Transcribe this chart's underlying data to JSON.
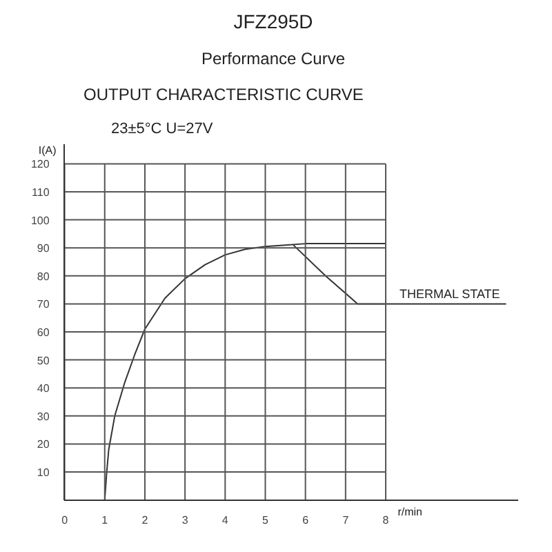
{
  "chart_data": {
    "type": "line",
    "title": "OUTPUT CHARACTERISTIC CURVE",
    "subtitle": "23±5°C U=27V",
    "xlabel": "r/min",
    "ylabel": "I(A)",
    "annotations": [
      "JFZ295D",
      "Performance Curve",
      {
        "text": "THERMAL STATE",
        "x": 9.6,
        "y": 70
      }
    ],
    "series": [
      {
        "color": "#333333",
        "x": [
          1,
          1.05,
          1.1,
          1.25,
          1.5,
          1.75,
          2,
          2.5,
          3,
          3.5,
          4,
          4.5,
          5,
          5.5,
          6,
          7,
          8
        ],
        "values": [
          0,
          10,
          18,
          30,
          42,
          52,
          61,
          72,
          79,
          84,
          87.5,
          89.5,
          90.5,
          91,
          91.5,
          91.5,
          91.5
        ]
      },
      {
        "color": "#333333",
        "x": [
          5.7,
          6.5,
          7.3,
          11
        ],
        "values": [
          91,
          80,
          70,
          70
        ]
      }
    ],
    "xlim": [
      0,
      11.3
    ],
    "ylim": [
      0,
      127
    ],
    "xticks": [
      0,
      1,
      2,
      3,
      4,
      5,
      6,
      7,
      8
    ],
    "yticks": [
      10,
      20,
      30,
      40,
      50,
      60,
      70,
      80,
      90,
      100,
      110,
      120
    ],
    "grid": true,
    "marker": "none",
    "line_style": "solid"
  }
}
